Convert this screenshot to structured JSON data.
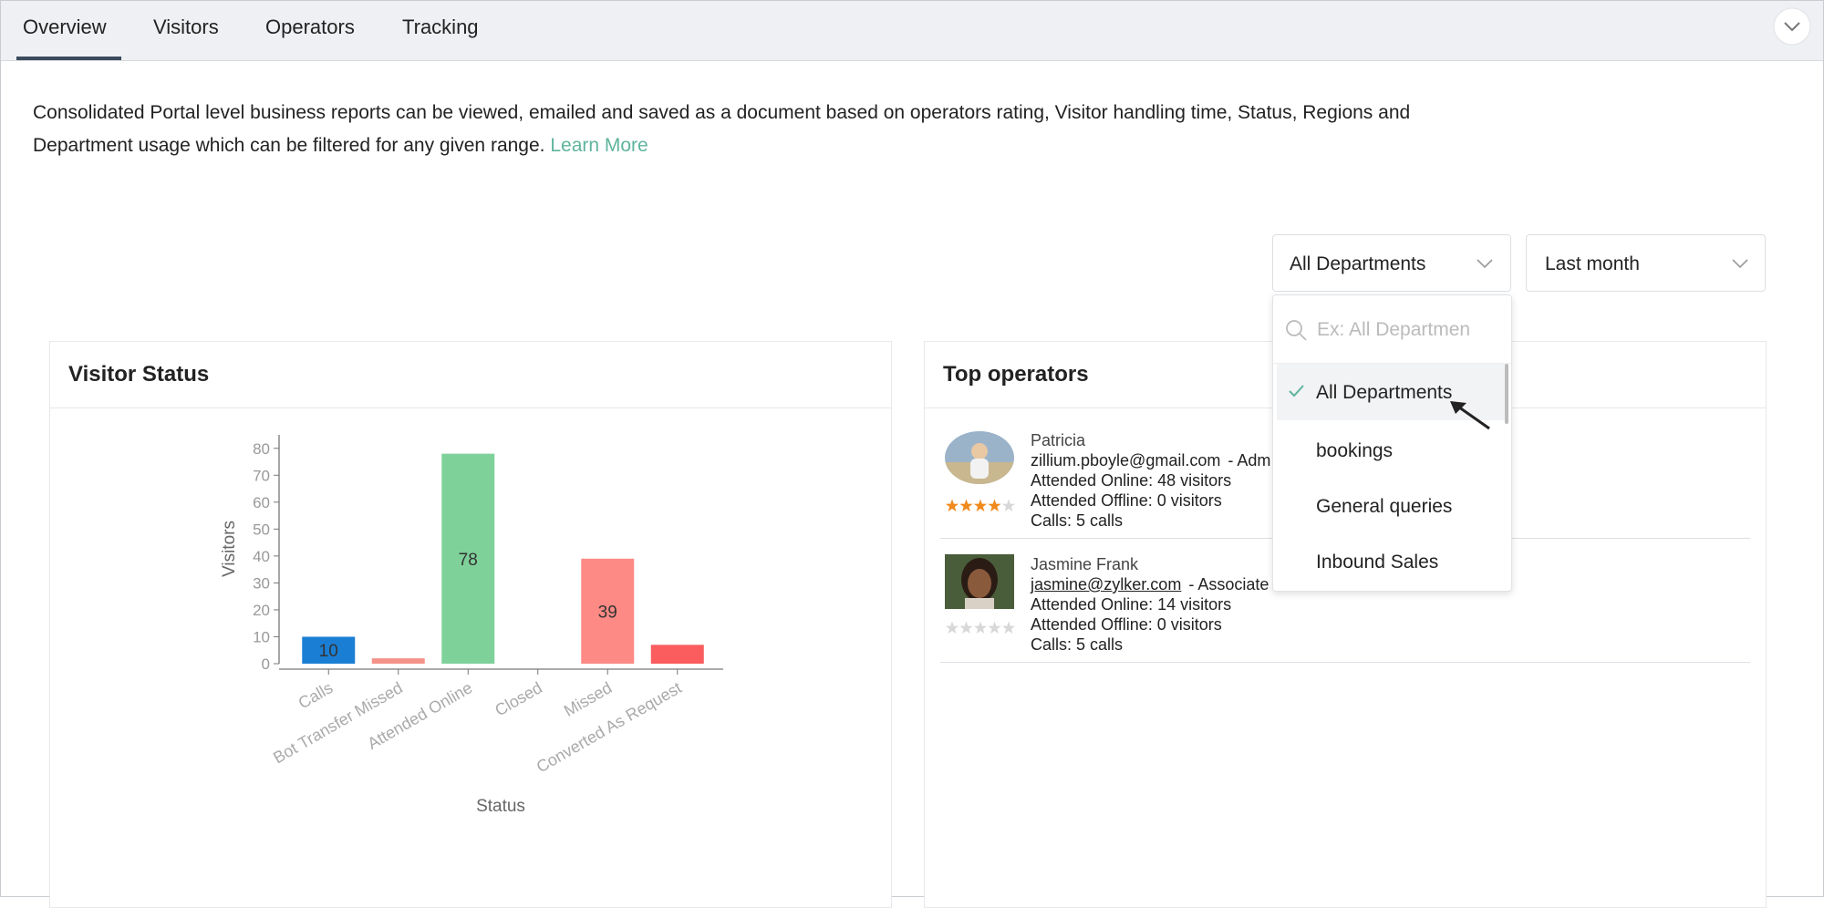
{
  "tabs": [
    "Overview",
    "Visitors",
    "Operators",
    "Tracking"
  ],
  "description": "Consolidated Portal level business reports can be viewed, emailed and saved as a document based on operators rating, Visitor handling time, Status, Regions and Department usage which can be filtered for any given range.",
  "learn_more": "Learn More",
  "filters": {
    "department": "All Departments",
    "period": "Last month"
  },
  "department_dropdown": {
    "search_placeholder": "Ex: All Departmen",
    "options": [
      "All Departments",
      "bookings",
      "General queries",
      "Inbound Sales"
    ]
  },
  "chart_data": {
    "type": "bar",
    "title": "Visitor Status",
    "categories": [
      "Calls",
      "Bot Transfer Missed",
      "Attended Online",
      "Closed",
      "Missed",
      "Converted As Request"
    ],
    "values": [
      10,
      2,
      78,
      0,
      39,
      7
    ],
    "colors": [
      "#1a7fd4",
      "#f4938a",
      "#7fd19a",
      "#cccccc",
      "#fd8a85",
      "#fb5c5e"
    ],
    "xlabel": "Status",
    "ylabel": "Visitors",
    "ylim": [
      0,
      85
    ],
    "yticks": [
      0,
      10,
      20,
      30,
      40,
      50,
      60,
      70,
      80
    ]
  },
  "top_operators": {
    "title": "Top operators",
    "operators": [
      {
        "name": "Patricia",
        "email": "zillium.pboyle@gmail.com",
        "role": "- Adm",
        "online": "Attended Online: 48 visitors",
        "offline": "Attended Offline: 0 visitors",
        "calls": "Calls: 5 calls",
        "rating": 4
      },
      {
        "name": "Jasmine Frank",
        "email": "jasmine@zylker.com",
        "role": "- Associate",
        "online": "Attended Online: 14 visitors",
        "offline": "Attended Offline: 0 visitors",
        "calls": "Calls: 5 calls",
        "rating": 0
      }
    ]
  }
}
